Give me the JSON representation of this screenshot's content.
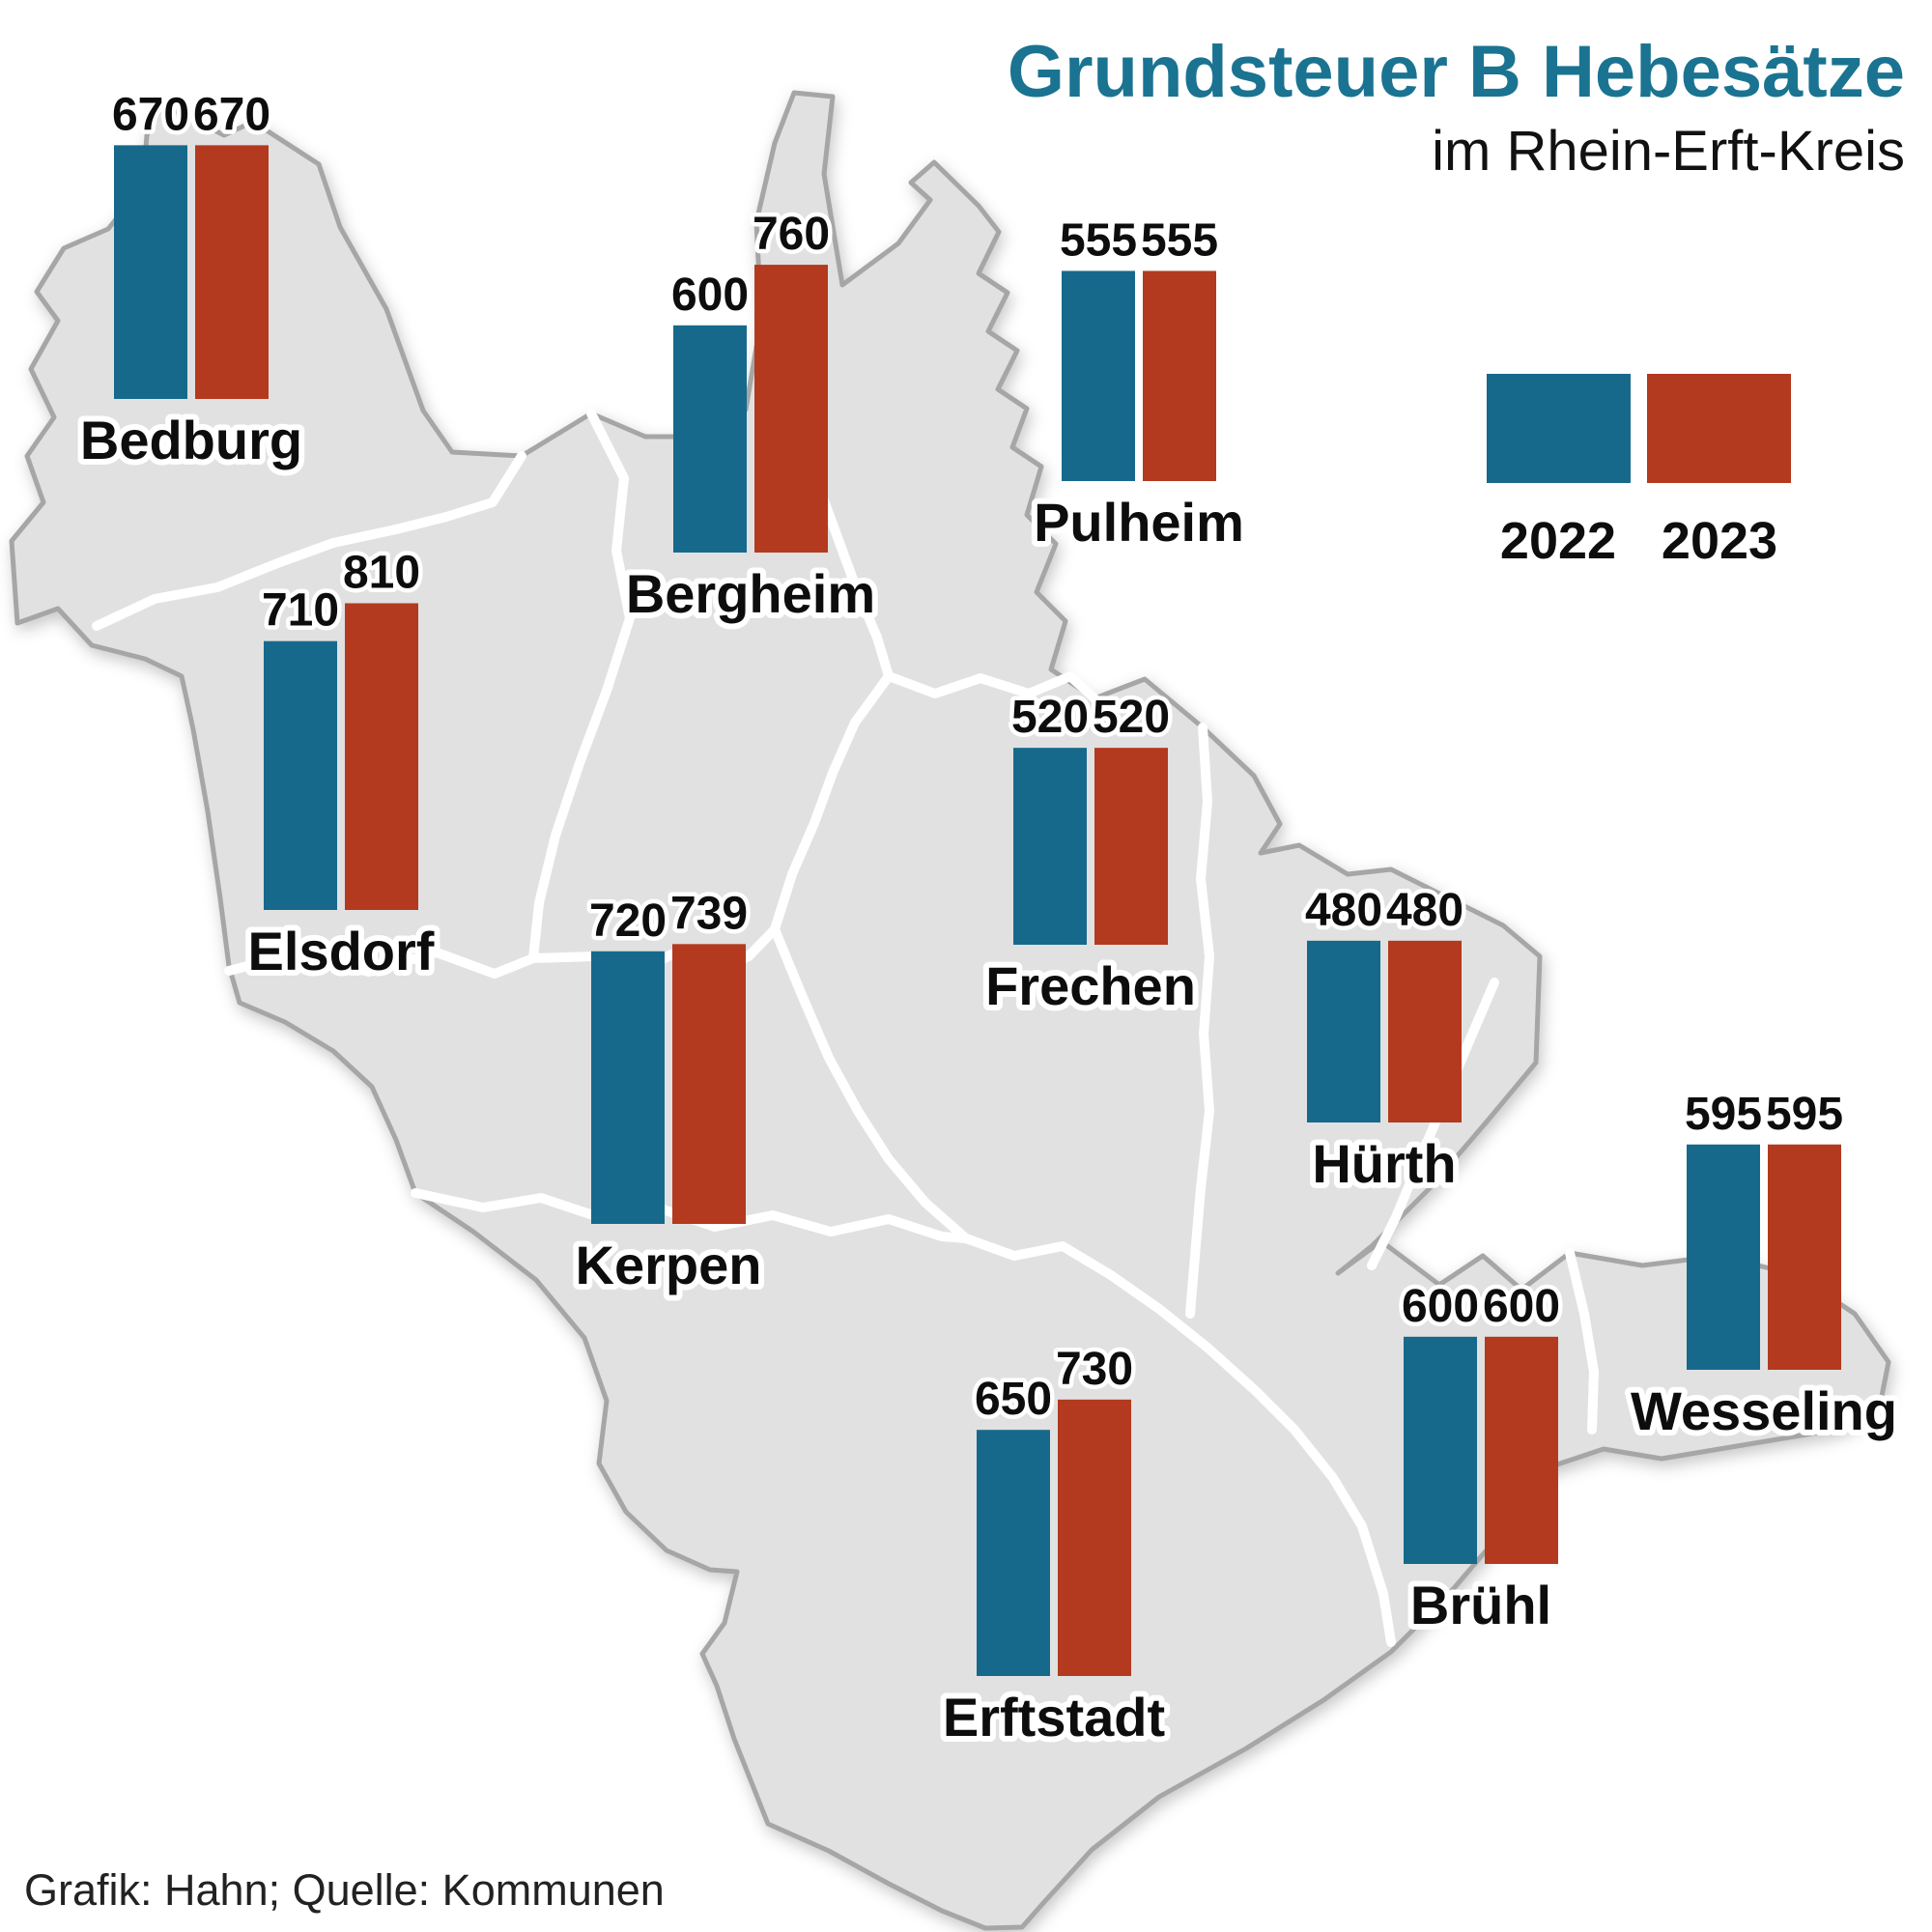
{
  "title": "Grundsteuer B Hebesätze",
  "subtitle": "im Rhein-Erft-Kreis",
  "source": "Grafik: Hahn; Quelle: Kommunen",
  "colors": {
    "year2022": "#17698c",
    "year2023": "#b33a1e",
    "title": "#1a7391",
    "map_fill": "#e1e1e1",
    "map_border": "#a6a6a6"
  },
  "legend": {
    "items": [
      {
        "label": "2022"
      },
      {
        "label": "2023"
      }
    ]
  },
  "chart_data": {
    "type": "bar",
    "title": "Grundsteuer B Hebesätze im Rhein-Erft-Kreis",
    "series": [
      "2022",
      "2023"
    ],
    "legend_position": "top-right",
    "cities": [
      {
        "name": "Bedburg",
        "values": [
          670,
          670
        ]
      },
      {
        "name": "Bergheim",
        "values": [
          600,
          760
        ]
      },
      {
        "name": "Pulheim",
        "values": [
          555,
          555
        ]
      },
      {
        "name": "Elsdorf",
        "values": [
          710,
          810
        ]
      },
      {
        "name": "Kerpen",
        "values": [
          720,
          739
        ]
      },
      {
        "name": "Frechen",
        "values": [
          520,
          520
        ]
      },
      {
        "name": "Hürth",
        "values": [
          480,
          480
        ]
      },
      {
        "name": "Wesseling",
        "values": [
          595,
          595
        ]
      },
      {
        "name": "Erftstadt",
        "values": [
          650,
          730
        ]
      },
      {
        "name": "Brühl",
        "values": [
          600,
          600
        ]
      }
    ]
  }
}
